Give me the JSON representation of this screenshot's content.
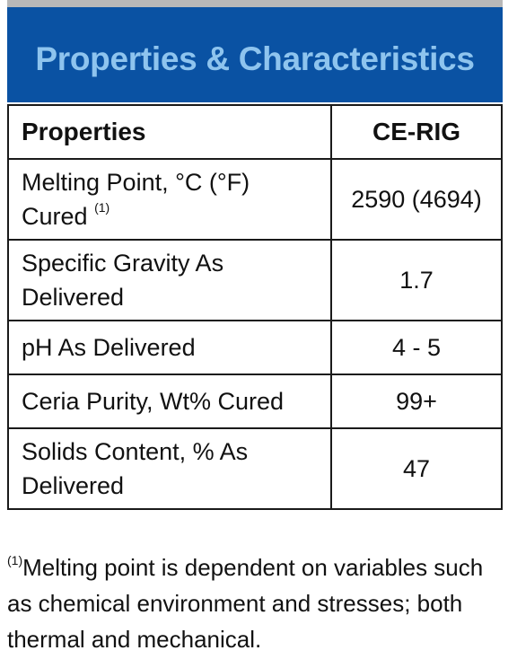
{
  "header": {
    "title": "Properties & Characteristics"
  },
  "table": {
    "columns": [
      "Properties",
      "CE-RIG"
    ],
    "rows": [
      {
        "property": "Melting Point, °C (°F) Cured",
        "ref": "(1)",
        "value": "2590 (4694)"
      },
      {
        "property": "Specific Gravity As Delivered",
        "value": "1.7"
      },
      {
        "property": "pH As Delivered",
        "value": "4 - 5"
      },
      {
        "property": "Ceria Purity, Wt% Cured",
        "value": "99+"
      },
      {
        "property": "Solids Content, % As Delivered",
        "value": "47"
      }
    ]
  },
  "footnote": {
    "marker": "(1)",
    "text": "Melting point is dependent on variables such as chemical environment and stresses; both thermal and mechanical."
  },
  "colors": {
    "header_bg": "#0a52a3",
    "header_text": "#8ec4ee",
    "border": "#1a1a1a"
  }
}
